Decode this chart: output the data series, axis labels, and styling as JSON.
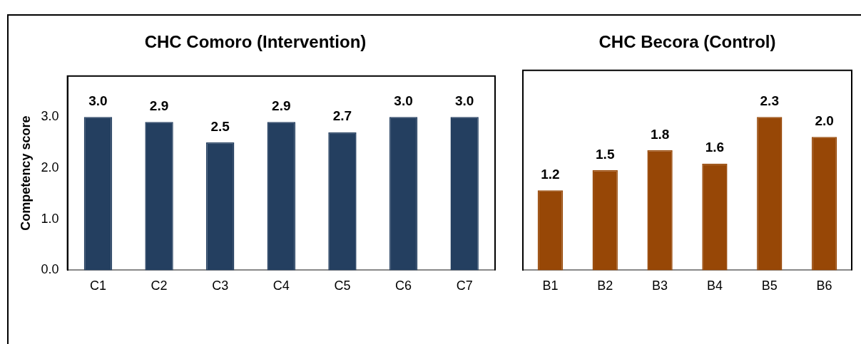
{
  "chart_data": [
    {
      "type": "bar",
      "title": "CHC Comoro (Intervention)",
      "ylabel": "Competency score",
      "categories": [
        "C1",
        "C2",
        "C3",
        "C4",
        "C5",
        "C6",
        "C7"
      ],
      "values": [
        3.0,
        2.9,
        2.5,
        2.9,
        2.7,
        3.0,
        3.0
      ],
      "value_labels": [
        "3.0",
        "2.9",
        "2.5",
        "2.9",
        "2.7",
        "3.0",
        "3.0"
      ],
      "color": "#243f60",
      "ylim": [
        0,
        3.8
      ],
      "yticks": [
        {
          "value": 0,
          "label": "0.0"
        },
        {
          "value": 1,
          "label": "1.0"
        },
        {
          "value": 2,
          "label": "2.0"
        },
        {
          "value": 3,
          "label": "3.0"
        }
      ],
      "grid": false,
      "legend": false
    },
    {
      "type": "bar",
      "title": "CHC Becora (Control)",
      "categories": [
        "B1",
        "B2",
        "B3",
        "B4",
        "B5",
        "B6"
      ],
      "values": [
        1.2,
        1.5,
        1.8,
        1.6,
        2.3,
        2.0
      ],
      "value_labels": [
        "1.2",
        "1.5",
        "1.8",
        "1.6",
        "2.3",
        "2.0"
      ],
      "color": "#974706",
      "grid": false,
      "legend": false,
      "tick_labels": "x"
    }
  ]
}
